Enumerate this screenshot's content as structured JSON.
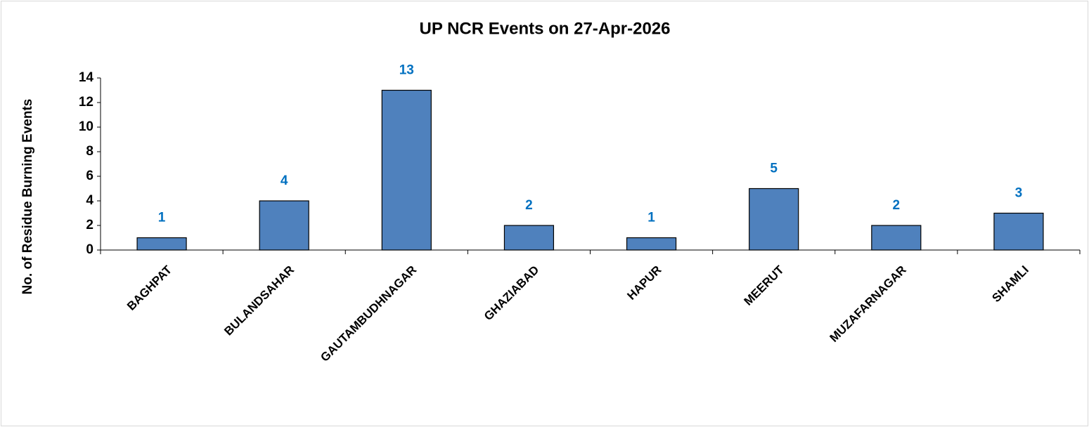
{
  "chart_data": {
    "type": "bar",
    "title": "UP NCR Events on 27-Apr-2026",
    "y_label": "No. of Residue Burning Events",
    "categories": [
      "BAGHPAT",
      "BULANDSAHAR",
      "GAUTAMBUDHNAGAR",
      "GHAZIABAD",
      "HAPUR",
      "MEERUT",
      "MUZAFARNAGAR",
      "SHAMLI"
    ],
    "values": [
      1,
      4,
      13,
      2,
      1,
      5,
      2,
      3
    ],
    "color": "#4f81bd",
    "label_color": "#0070c0",
    "ylim": [
      0,
      14
    ],
    "yticks": [
      0,
      2,
      4,
      6,
      8,
      10,
      12,
      14
    ],
    "grid": false
  }
}
